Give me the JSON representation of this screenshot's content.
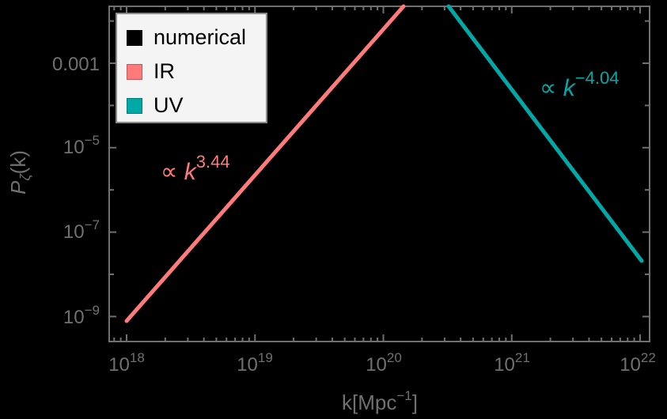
{
  "chart_data": {
    "type": "line",
    "title": "",
    "xlabel": "k[Mpc^-1]",
    "ylabel": "Pζ(k)",
    "xscale": "log",
    "yscale": "log",
    "xlim": [
      7.5e+17,
      1.2e+22
    ],
    "ylim": [
      5e-10,
      0.022
    ],
    "x_ticks": [
      {
        "base": "10",
        "exp": "18"
      },
      {
        "base": "10",
        "exp": "19"
      },
      {
        "base": "10",
        "exp": "20"
      },
      {
        "base": "10",
        "exp": "21"
      },
      {
        "base": "10",
        "exp": "22"
      }
    ],
    "y_ticks": [
      {
        "text": "0.001"
      },
      {
        "base": "10",
        "exp": "−5"
      },
      {
        "base": "10",
        "exp": "−7"
      },
      {
        "base": "10",
        "exp": "−9"
      }
    ],
    "legend": {
      "position": "top-left",
      "entries": [
        {
          "label": "numerical",
          "color": "#000000"
        },
        {
          "label": "IR",
          "color": "#ff7a7a"
        },
        {
          "label": "UV",
          "color": "#00a8a8"
        }
      ]
    },
    "series": [
      {
        "name": "IR",
        "color": "#ff7a7a",
        "x": [
          1e+18,
          1.6e+20
        ],
        "y": [
          8e-10,
          0.022
        ],
        "slope": 3.44
      },
      {
        "name": "UV",
        "color": "#00a8a8",
        "x": [
          3.3e+20,
          1e+22
        ],
        "y": [
          0.022,
          2e-08
        ],
        "slope": -4.04
      }
    ],
    "annotations": [
      {
        "text": "∝ k^3.44",
        "color": "#ff7a7a",
        "prefix": "∝ ",
        "var": "k",
        "exp": "3.44"
      },
      {
        "text": "∝ k^-4.04",
        "color": "#00a8a8",
        "prefix": "∝ ",
        "var": "k",
        "exp": "−4.04"
      }
    ],
    "grid": false
  },
  "axes": {
    "xlabel_main": "k[Mpc",
    "xlabel_sup": "−1",
    "xlabel_end": "]",
    "ylabel_main": "P",
    "ylabel_sub": "ζ",
    "ylabel_end": "(k)"
  }
}
